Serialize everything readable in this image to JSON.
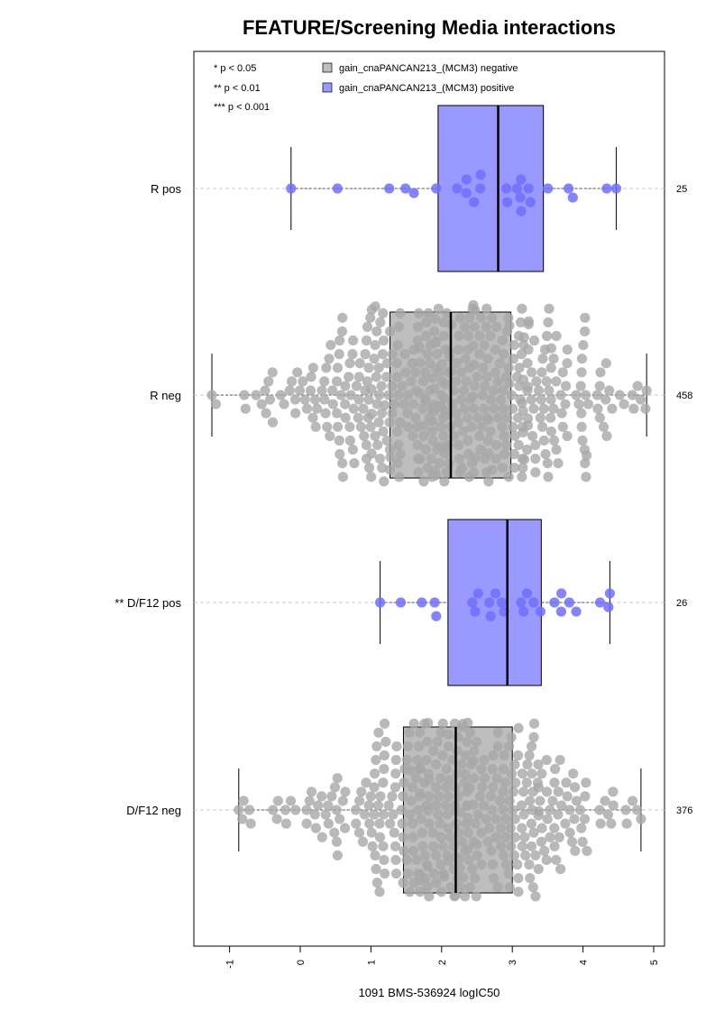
{
  "chart_data": {
    "type": "boxplot",
    "title": "FEATURE/Screening Media interactions",
    "xlabel": "1091 BMS-536924 logIC50",
    "xlim": [
      -1.5,
      5.15
    ],
    "xticks": [
      -1,
      0,
      1,
      2,
      3,
      4,
      5
    ],
    "xtick_labels": [
      "-1",
      "0",
      "1",
      "2",
      "3",
      "4",
      "5"
    ],
    "significance_legend": [
      "* p < 0.05",
      "** p < 0.01",
      "*** p < 0.001"
    ],
    "legend": [
      {
        "label": "gain_cnaPANCAN213_(MCM3) negative",
        "color": "#bebebe"
      },
      {
        "label": "gain_cnaPANCAN213_(MCM3) positive",
        "color": "#9999ff"
      }
    ],
    "groups": [
      {
        "label": "R pos",
        "n": "25",
        "status": "positive",
        "whisker_low": -0.13,
        "q1": 1.95,
        "median": 2.8,
        "q3": 3.44,
        "whisker_high": 4.47
      },
      {
        "label": "R neg",
        "n": "458",
        "status": "negative",
        "whisker_low": -1.25,
        "q1": 1.27,
        "median": 2.13,
        "q3": 2.98,
        "whisker_high": 4.9
      },
      {
        "label": "** D/F12 pos",
        "n": "26",
        "status": "positive",
        "whisker_low": 1.13,
        "q1": 2.09,
        "median": 2.93,
        "q3": 3.41,
        "whisker_high": 4.38
      },
      {
        "label": "D/F12 neg",
        "n": "376",
        "status": "negative",
        "whisker_low": -0.87,
        "q1": 1.46,
        "median": 2.2,
        "q3": 3.0,
        "whisker_high": 4.82
      }
    ]
  },
  "colors": {
    "negative_box": "#bebebe",
    "negative_point": "#a8a8a8",
    "positive_box": "#9999ff",
    "positive_point": "#6e6eff"
  }
}
